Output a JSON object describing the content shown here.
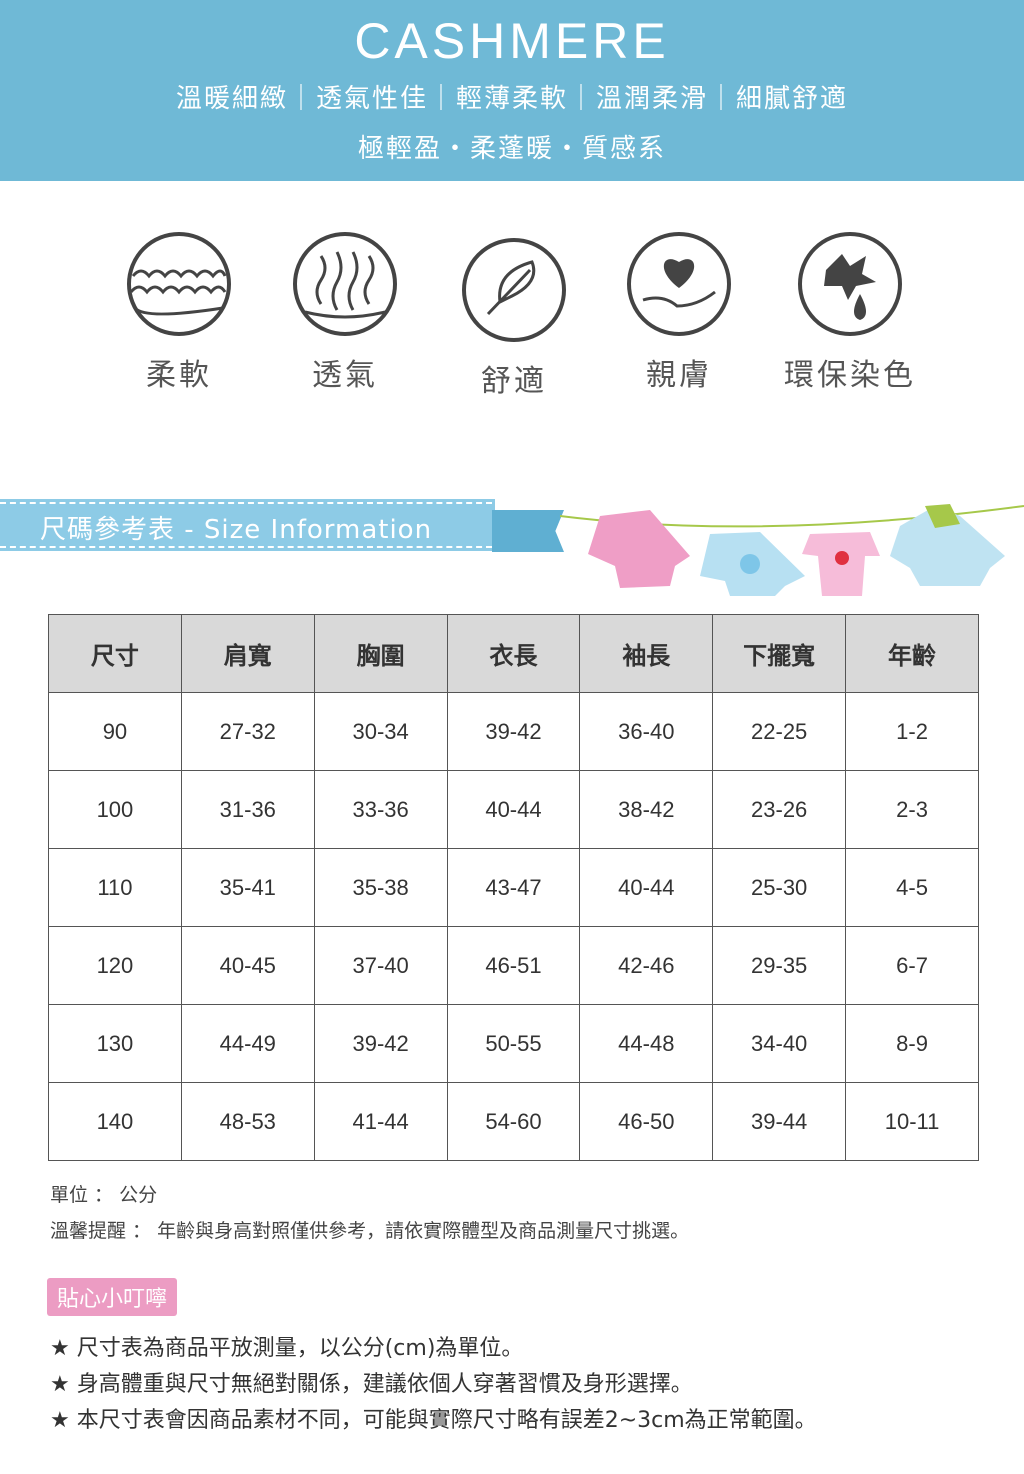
{
  "header": {
    "title": "CASHMERE",
    "subtitle": "溫暖細緻｜透氣性佳｜輕薄柔軟｜溫潤柔滑｜細膩舒適",
    "tagline": "極輕盈・柔蓬暖・質感系",
    "bg_color": "#6fb9d6"
  },
  "features": [
    {
      "label": "柔軟",
      "icon": "cloud-layers-icon"
    },
    {
      "label": "透氣",
      "icon": "airflow-arrows-icon"
    },
    {
      "label": "舒適",
      "icon": "feather-icon"
    },
    {
      "label": "親膚",
      "icon": "heart-hand-icon"
    },
    {
      "label": "環保染色",
      "icon": "leaf-drop-icon"
    }
  ],
  "section": {
    "title": "尺碼參考表 - Size Information"
  },
  "table": {
    "headers": [
      "尺寸",
      "肩寬",
      "胸圍",
      "衣長",
      "袖長",
      "下擺寬",
      "年齡"
    ],
    "rows": [
      [
        "90",
        "27-32",
        "30-34",
        "39-42",
        "36-40",
        "22-25",
        "1-2"
      ],
      [
        "100",
        "31-36",
        "33-36",
        "40-44",
        "38-42",
        "23-26",
        "2-3"
      ],
      [
        "110",
        "35-41",
        "35-38",
        "43-47",
        "40-44",
        "25-30",
        "4-5"
      ],
      [
        "120",
        "40-45",
        "37-40",
        "46-51",
        "42-46",
        "29-35",
        "6-7"
      ],
      [
        "130",
        "44-49",
        "39-42",
        "50-55",
        "44-48",
        "34-40",
        "8-9"
      ],
      [
        "140",
        "48-53",
        "41-44",
        "54-60",
        "46-50",
        "39-44",
        "10-11"
      ]
    ]
  },
  "notes": {
    "unit": "單位 ： 公分",
    "reminder": "溫馨提醒 ： 年齡與身高對照僅供參考，請依實際體型及商品測量尺寸挑選。"
  },
  "tips": {
    "title": "貼心小叮嚀",
    "items": [
      "★ 尺寸表為商品平放測量，以公分(cm)為單位。",
      "★ 身高體重與尺寸無絕對關係，建議依個人穿著習慣及身形選擇。",
      "★ 本尺寸表會因商品素材不同，可能與實際尺寸略有誤差2~3cm為正常範圍。"
    ]
  }
}
